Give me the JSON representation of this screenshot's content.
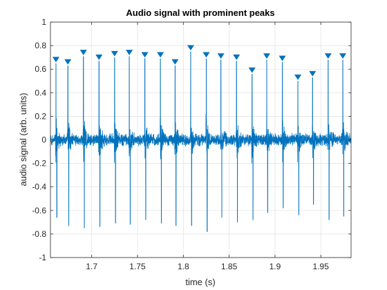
{
  "chart_data": {
    "type": "line",
    "title": "Audio signal with prominent peaks",
    "xlabel": "time (s)",
    "ylabel": "audio signal (arb. units)",
    "xlim": [
      1.655,
      1.983
    ],
    "ylim": [
      -1,
      1
    ],
    "xticks": [
      1.7,
      1.75,
      1.8,
      1.85,
      1.9,
      1.95
    ],
    "xtick_labels": [
      "1.7",
      "1.75",
      "1.8",
      "1.85",
      "1.9",
      "1.95"
    ],
    "yticks": [
      -1,
      -0.8,
      -0.6,
      -0.4,
      -0.2,
      0,
      0.2,
      0.4,
      0.6,
      0.8,
      1
    ],
    "ytick_labels": [
      "-1",
      "-0.8",
      "-0.6",
      "-0.4",
      "-0.2",
      "0",
      "0.2",
      "0.4",
      "0.6",
      "0.8",
      "1"
    ],
    "grid": true,
    "colors": {
      "signal": "#0072BD",
      "grid": "#dfdfdf",
      "axes": "#262626"
    },
    "peaks": {
      "marker": "inverted-triangle",
      "x": [
        1.661,
        1.674,
        1.691,
        1.708,
        1.725,
        1.741,
        1.758,
        1.775,
        1.791,
        1.808,
        1.825,
        1.841,
        1.858,
        1.875,
        1.891,
        1.908,
        1.925,
        1.941,
        1.958,
        1.974
      ],
      "y": [
        0.65,
        0.63,
        0.71,
        0.67,
        0.7,
        0.71,
        0.69,
        0.69,
        0.63,
        0.75,
        0.69,
        0.68,
        0.67,
        0.56,
        0.68,
        0.66,
        0.5,
        0.53,
        0.68,
        0.68
      ]
    },
    "negative_peaks": {
      "x": [
        1.662,
        1.675,
        1.692,
        1.709,
        1.726,
        1.742,
        1.759,
        1.776,
        1.792,
        1.809,
        1.826,
        1.842,
        1.859,
        1.876,
        1.892,
        1.909,
        1.926,
        1.942,
        1.959,
        1.975
      ],
      "y": [
        -0.66,
        -0.73,
        -0.75,
        -0.74,
        -0.71,
        -0.72,
        -0.68,
        -0.71,
        -0.73,
        -0.73,
        -0.78,
        -0.66,
        -0.7,
        -0.68,
        -0.62,
        -0.58,
        -0.64,
        -0.55,
        -0.68,
        -0.65
      ]
    },
    "noise_amplitude": 0.06
  }
}
